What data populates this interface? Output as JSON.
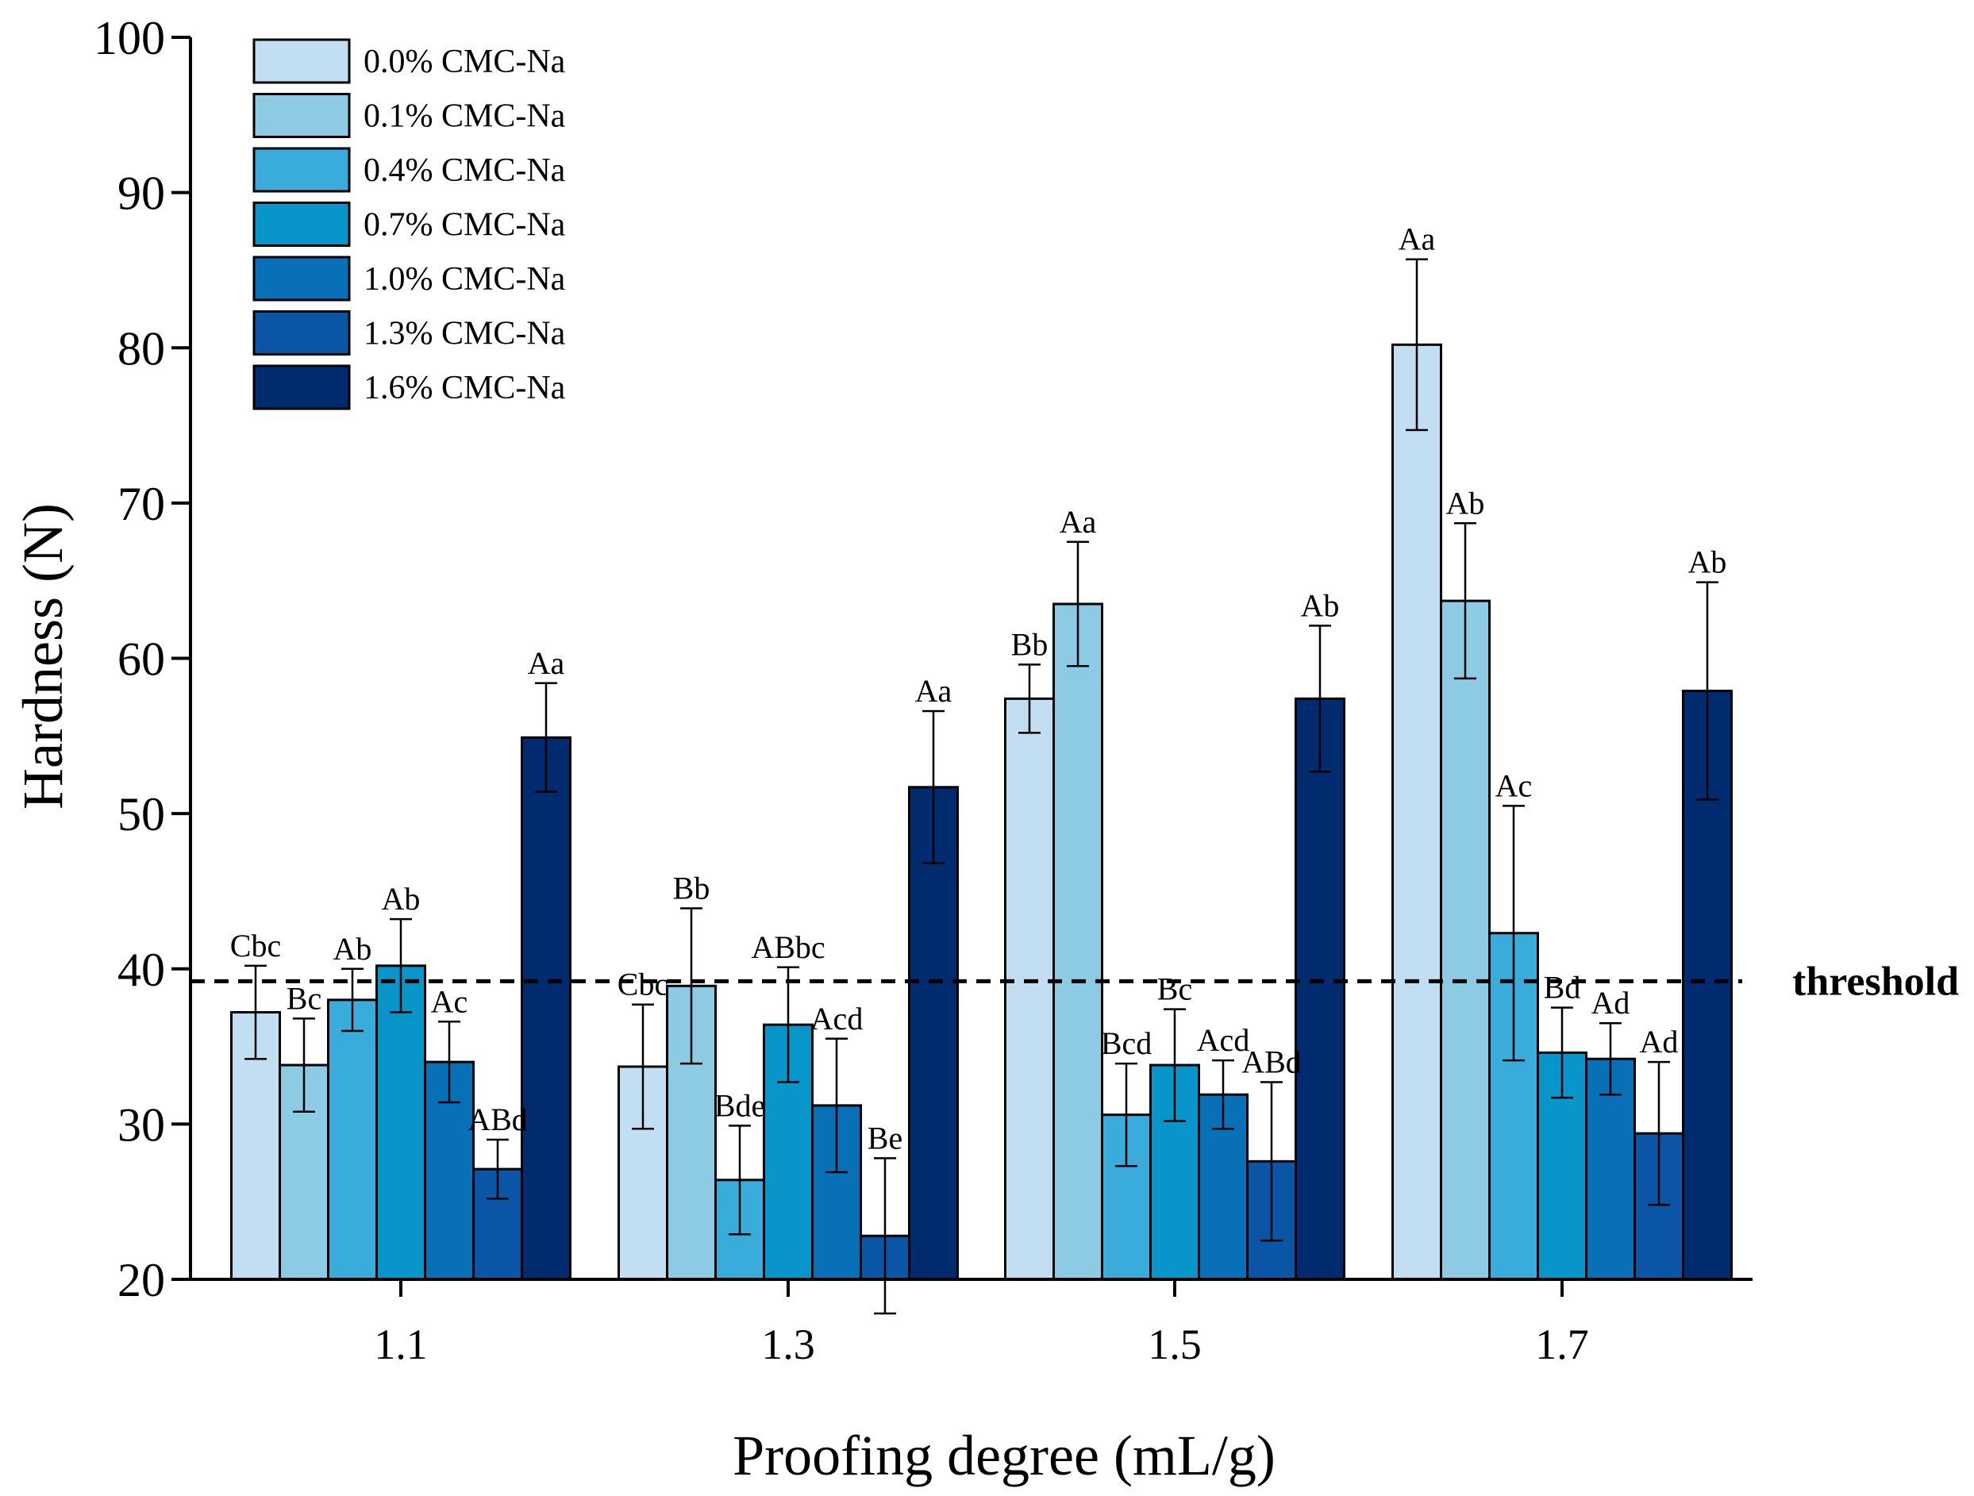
{
  "chart_data": {
    "type": "bar",
    "title": "",
    "xlabel": "Proofing degree (mL/g)",
    "ylabel": "Hardness (N)",
    "ylim": [
      20,
      100
    ],
    "yticks": [
      20,
      30,
      40,
      50,
      60,
      70,
      80,
      90,
      100
    ],
    "categories": [
      "1.1",
      "1.3",
      "1.5",
      "1.7"
    ],
    "legend_position": "top-left",
    "grid": false,
    "series": [
      {
        "name": "0.0% CMC-Na",
        "color": "#c2def2",
        "values": [
          37.2,
          33.7,
          57.4,
          80.2
        ],
        "errors": [
          3.0,
          4.0,
          2.2,
          5.5
        ],
        "labels": [
          "Cbc",
          "Cbc",
          "Bb",
          "Aa"
        ]
      },
      {
        "name": "0.1% CMC-Na",
        "color": "#8dcbe4",
        "values": [
          33.8,
          38.9,
          63.5,
          63.7
        ],
        "errors": [
          3.0,
          5.0,
          4.0,
          5.0
        ],
        "labels": [
          "Bc",
          "Bb",
          "Aa",
          "Ab"
        ]
      },
      {
        "name": "0.4% CMC-Na",
        "color": "#3aacdc",
        "values": [
          38.0,
          26.4,
          30.6,
          42.3
        ],
        "errors": [
          2.0,
          3.5,
          3.3,
          8.2
        ],
        "labels": [
          "Ab",
          "Bde",
          "Bcd",
          "Ac"
        ]
      },
      {
        "name": "0.7% CMC-Na",
        "color": "#0895c9",
        "values": [
          40.2,
          36.4,
          33.8,
          34.6
        ],
        "errors": [
          3.0,
          3.7,
          3.6,
          2.9
        ],
        "labels": [
          "Ab",
          "ABbc",
          "Bc",
          "Bd"
        ]
      },
      {
        "name": "1.0% CMC-Na",
        "color": "#0870b7",
        "values": [
          34.0,
          31.2,
          31.9,
          34.2
        ],
        "errors": [
          2.6,
          4.3,
          2.2,
          2.3
        ],
        "labels": [
          "Ac",
          "Acd",
          "Acd",
          "Ad"
        ]
      },
      {
        "name": "1.3% CMC-Na",
        "color": "#0a55a5",
        "values": [
          27.1,
          22.8,
          27.6,
          29.4
        ],
        "errors": [
          1.9,
          5.0,
          5.1,
          4.6
        ],
        "labels": [
          "ABd",
          "Be",
          "ABd",
          "Ad"
        ]
      },
      {
        "name": "1.6% CMC-Na",
        "color": "#002c6f",
        "values": [
          54.9,
          51.7,
          57.4,
          57.9
        ],
        "errors": [
          3.5,
          4.9,
          4.7,
          7.0
        ],
        "labels": [
          "Aa",
          "Aa",
          "Ab",
          "Ab"
        ]
      }
    ],
    "threshold": {
      "value": 39.2,
      "label": "threshold"
    }
  }
}
